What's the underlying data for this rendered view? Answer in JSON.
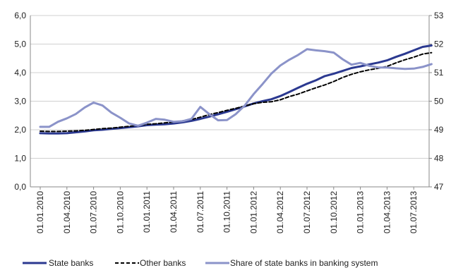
{
  "chart_data": {
    "type": "line",
    "title": "",
    "xlabel": "",
    "ylabel": "",
    "y_left": {
      "ylim": [
        0,
        6
      ],
      "ticks": [
        "0,0",
        "1,0",
        "2,0",
        "3,0",
        "4,0",
        "5,0",
        "6,0"
      ]
    },
    "y_right": {
      "ylim": [
        47,
        53
      ],
      "ticks": [
        "47",
        "48",
        "49",
        "50",
        "51",
        "52",
        "53"
      ]
    },
    "x_tick_labels": [
      "01.01.2010",
      "01.04.2010",
      "01.07.2010",
      "01.10.2010",
      "01.01.2011",
      "01.04.2011",
      "01.07.2011",
      "01.10.2011",
      "01.01.2012",
      "01.04.2012",
      "01.07.2012",
      "01.10.2012",
      "01.01.2013",
      "01.04.2013",
      "01.07.2013"
    ],
    "grid": "horizontal",
    "legend_position": "bottom",
    "x": [
      "01.01.2010",
      "01.02.2010",
      "01.03.2010",
      "01.04.2010",
      "01.05.2010",
      "01.06.2010",
      "01.07.2010",
      "01.08.2010",
      "01.09.2010",
      "01.10.2010",
      "01.11.2010",
      "01.12.2010",
      "01.01.2011",
      "01.02.2011",
      "01.03.2011",
      "01.04.2011",
      "01.05.2011",
      "01.06.2011",
      "01.07.2011",
      "01.08.2011",
      "01.09.2011",
      "01.10.2011",
      "01.11.2011",
      "01.12.2011",
      "01.01.2012",
      "01.02.2012",
      "01.03.2012",
      "01.04.2012",
      "01.05.2012",
      "01.06.2012",
      "01.07.2012",
      "01.08.2012",
      "01.09.2012",
      "01.10.2012",
      "01.11.2012",
      "01.12.2012",
      "01.01.2013",
      "01.02.2013",
      "01.03.2013",
      "01.04.2013",
      "01.05.2013",
      "01.06.2013",
      "01.07.2013",
      "01.08.2013",
      "01.09.2013"
    ],
    "series": [
      {
        "name": "State banks",
        "axis": "left",
        "color": "#2b3990",
        "style": "solid",
        "values": [
          1.88,
          1.87,
          1.87,
          1.88,
          1.91,
          1.94,
          1.98,
          2.0,
          2.03,
          2.06,
          2.09,
          2.12,
          2.16,
          2.18,
          2.19,
          2.22,
          2.26,
          2.31,
          2.38,
          2.46,
          2.54,
          2.63,
          2.72,
          2.82,
          2.92,
          3.0,
          3.07,
          3.18,
          3.32,
          3.47,
          3.61,
          3.73,
          3.88,
          3.96,
          4.06,
          4.16,
          4.22,
          4.29,
          4.35,
          4.43,
          4.55,
          4.66,
          4.78,
          4.9,
          4.95
        ]
      },
      {
        "name": "Other banks",
        "axis": "left",
        "color": "#000000",
        "style": "dashed",
        "values": [
          1.95,
          1.94,
          1.94,
          1.95,
          1.96,
          1.98,
          2.01,
          2.04,
          2.06,
          2.09,
          2.12,
          2.15,
          2.19,
          2.21,
          2.24,
          2.27,
          2.31,
          2.36,
          2.44,
          2.53,
          2.6,
          2.68,
          2.75,
          2.83,
          2.91,
          2.96,
          2.98,
          3.05,
          3.16,
          3.25,
          3.36,
          3.47,
          3.57,
          3.69,
          3.83,
          3.94,
          4.03,
          4.1,
          4.15,
          4.22,
          4.34,
          4.45,
          4.54,
          4.65,
          4.7
        ]
      },
      {
        "name": "Share of state banks in banking system",
        "axis": "right",
        "color": "#8b93c9",
        "style": "solid",
        "values": [
          49.1,
          49.1,
          49.28,
          49.4,
          49.55,
          49.78,
          49.95,
          49.85,
          49.6,
          49.42,
          49.22,
          49.14,
          49.25,
          49.38,
          49.35,
          49.28,
          49.3,
          49.38,
          49.8,
          49.55,
          49.33,
          49.34,
          49.55,
          49.85,
          50.25,
          50.6,
          50.97,
          51.25,
          51.45,
          51.62,
          51.82,
          51.78,
          51.75,
          51.7,
          51.47,
          51.28,
          51.34,
          51.24,
          51.18,
          51.18,
          51.15,
          51.13,
          51.14,
          51.2,
          51.3
        ]
      }
    ]
  }
}
